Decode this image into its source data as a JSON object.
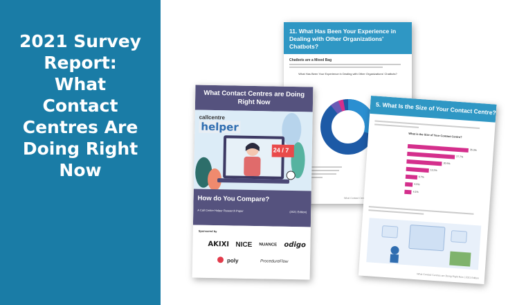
{
  "left_panel": {
    "title_lines": [
      "2021 Survey",
      "Report:",
      "What",
      "Contact",
      "Centres Are",
      "Doing Right",
      "Now"
    ]
  },
  "back_page": {
    "heading": "11. What Has Been Your Experience in Dealing with Other Organizations' Chatbots?",
    "subheading": "Chatbots are a Mixed Bag",
    "chart_question": "What Has Been Your Experience in Dealing with Other Organizations' Chatbots?",
    "footer": "What Contact Centres are Doing Right Now | 2021 Edition"
  },
  "right_page": {
    "heading": "5. What Is the Size of Your Contact Centre?",
    "chart_question": "What is the Size of Your Contact Centre?",
    "bar_values": [
      "35.3%",
      "27.7%",
      "20.5%",
      "13.2%",
      "6.7%",
      "4.5%",
      "4.1%"
    ],
    "bar_fractions": [
      0.353,
      0.277,
      0.205,
      0.132,
      0.067,
      0.045,
      0.041
    ],
    "footer": "What Contact Centres are Doing Right Now | 2021 Edition"
  },
  "cover": {
    "title": "What Contact Centres are Doing Right Now",
    "logo_top": "callcentre",
    "logo_main": "helper",
    "badge": "24 / 7",
    "band_title": "How do You Compare?",
    "band_subtitle": "A Call Centre Helper Research Paper",
    "edition": "(2021 Edition)",
    "sponsored_by": "Sponsored by",
    "sponsors": {
      "akixi": "AKIXI",
      "nice": "NICE",
      "nuance": "NUANCE",
      "odigo": "odigo",
      "poly": "poly",
      "procedureflow": "ProcedureFlow"
    }
  },
  "colors": {
    "left_panel": "#1a7ca6",
    "page_header": "#2f97c4",
    "cover_purple": "#55527e",
    "bar_pink": "#d42f8c"
  }
}
